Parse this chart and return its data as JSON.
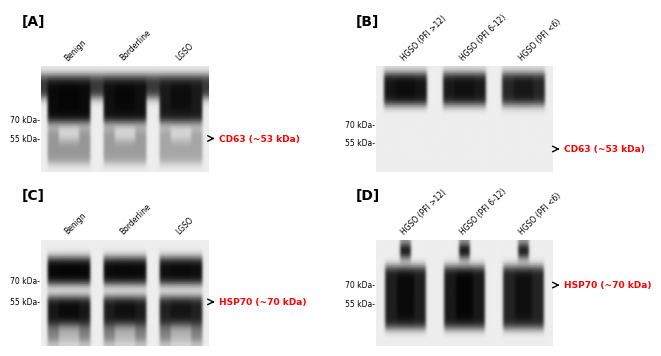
{
  "panel_A_lane_labels": [
    "Benign",
    "Borderline",
    "LGSO"
  ],
  "panel_B_lane_labels": [
    "HGSO (PFI >12)",
    "HGSO (PFI 6-12)",
    "HGSO (PFI <6)"
  ],
  "panel_C_lane_labels": [
    "Benign",
    "Borderline",
    "LGSO"
  ],
  "panel_D_lane_labels": [
    "HGSO (PFI >12)",
    "HGSO (PFI 6-12)",
    "HGSO (PFI <6)"
  ],
  "annotation_A": "CD63 (~53 kDa)",
  "annotation_B": "CD63 (~53 kDa)",
  "annotation_C": "HSP70 (~70 kDa)",
  "annotation_D": "HSP70 (~70 kDa)",
  "annotation_color": "#FF0000",
  "arrow_color": "#000000",
  "bg_color": "#FFFFFF"
}
